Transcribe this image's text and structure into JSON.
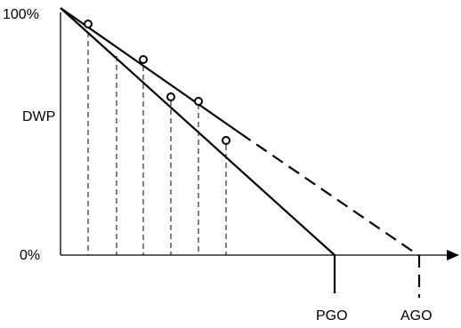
{
  "labels": {
    "y_top": "100%",
    "y_mid": "DWP",
    "y_bottom": "0%",
    "x_pgo": "PGO",
    "x_ago": "AGO"
  },
  "style": {
    "stroke_color": "#000000",
    "background": "#ffffff"
  }
}
